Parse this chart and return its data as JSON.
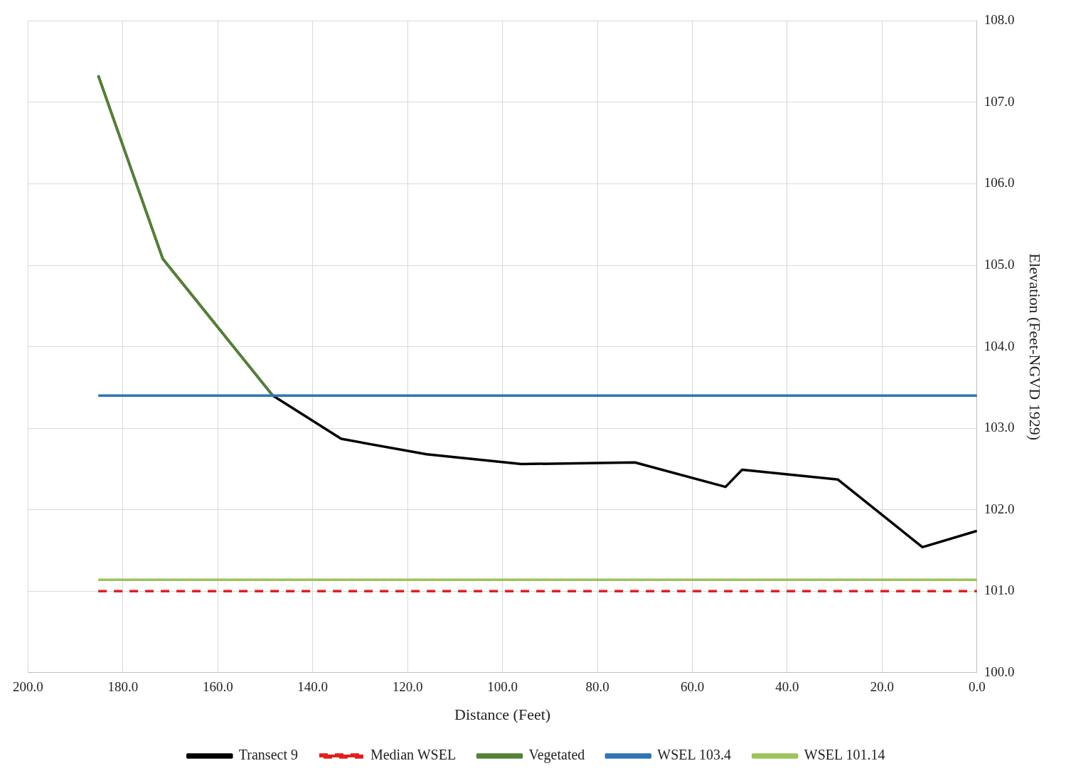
{
  "chart_data": {
    "type": "line",
    "xlabel": "Distance (Feet)",
    "ylabel": "Elevation (Feet-NGVD 1929)",
    "xlim": [
      200,
      0
    ],
    "ylim": [
      100,
      108
    ],
    "xticks": [
      {
        "value": 200,
        "label": "200.0"
      },
      {
        "value": 180,
        "label": "180.0"
      },
      {
        "value": 160,
        "label": "160.0"
      },
      {
        "value": 140,
        "label": "140.0"
      },
      {
        "value": 120,
        "label": "120.0"
      },
      {
        "value": 100,
        "label": "100.0"
      },
      {
        "value": 80,
        "label": "80.0"
      },
      {
        "value": 60,
        "label": "60.0"
      },
      {
        "value": 40,
        "label": "40.0"
      },
      {
        "value": 20,
        "label": "20.0"
      },
      {
        "value": 0,
        "label": "0.0"
      }
    ],
    "yticks": [
      {
        "value": 100,
        "label": "100.0"
      },
      {
        "value": 101,
        "label": "101.0"
      },
      {
        "value": 102,
        "label": "102.0"
      },
      {
        "value": 103,
        "label": "103.0"
      },
      {
        "value": 104,
        "label": "104.0"
      },
      {
        "value": 105,
        "label": "105.0"
      },
      {
        "value": 106,
        "label": "106.0"
      },
      {
        "value": 107,
        "label": "107.0"
      },
      {
        "value": 108,
        "label": "108.0"
      }
    ],
    "grid": true,
    "legend": "bottom",
    "marker": "none",
    "series": [
      {
        "name": "Transect 9",
        "color": "#000000",
        "x": [
          185.2,
          171.6,
          148.4,
          134.0,
          116.0,
          96.0,
          72.1,
          53.0,
          49.5,
          29.3,
          11.5,
          0
        ],
        "values": [
          107.33,
          105.08,
          103.4,
          102.87,
          102.68,
          102.56,
          102.58,
          102.28,
          102.49,
          102.37,
          101.54,
          101.74
        ]
      },
      {
        "name": "Median WSEL",
        "color": "#e02020",
        "line_style": "dashed",
        "x": [
          185.2,
          0
        ],
        "values": [
          101.0,
          101.0
        ]
      },
      {
        "name": "Vegetated",
        "color": "#548235",
        "x": [
          185.2,
          171.6,
          148.4
        ],
        "values": [
          107.33,
          105.08,
          103.4
        ]
      },
      {
        "name": "WSEL 103.4",
        "color": "#2e75b6",
        "x": [
          185.2,
          0
        ],
        "values": [
          103.4,
          103.4
        ]
      },
      {
        "name": "WSEL 101.14",
        "color": "#9cc35a",
        "x": [
          185.2,
          0
        ],
        "values": [
          101.14,
          101.14
        ]
      }
    ]
  }
}
